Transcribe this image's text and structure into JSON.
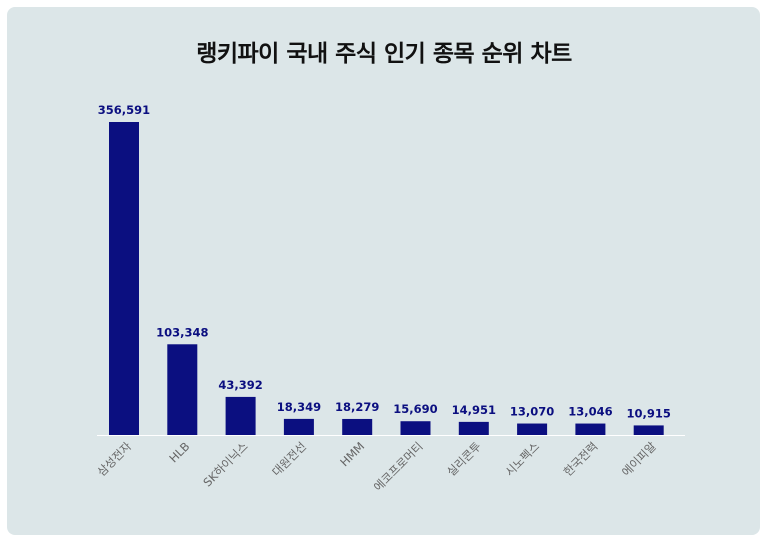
{
  "colors": {
    "background": "#dce6e8",
    "bar": "#0b0f80",
    "value_label": "#0b0f80",
    "tick_label": "#666666",
    "baseline": "#ffffff"
  },
  "chart_data": {
    "type": "bar",
    "title": "랭키파이 국내 주식 인기 종목 순위 차트",
    "xlabel": "",
    "ylabel": "",
    "categories": [
      "삼성전자",
      "HLB",
      "SK하이닉스",
      "대원전선",
      "HMM",
      "에코프로머티",
      "실리콘투",
      "시노펙스",
      "한국전력",
      "에이피알"
    ],
    "values": [
      356591,
      103348,
      43392,
      18349,
      18279,
      15690,
      14951,
      13070,
      13046,
      10915
    ],
    "value_labels": [
      "356,591",
      "103,348",
      "43,392",
      "18,349",
      "18,279",
      "15,690",
      "14,951",
      "13,070",
      "13,046",
      "10,915"
    ],
    "ylim": [
      0,
      356591
    ],
    "grid": false,
    "legend": "none"
  }
}
